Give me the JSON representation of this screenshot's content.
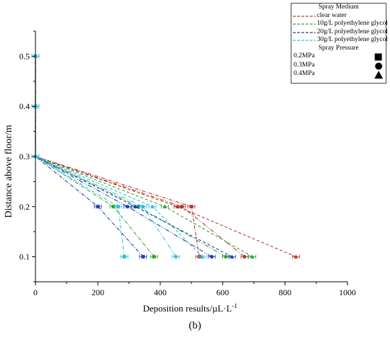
{
  "caption": "(b)",
  "chart_data": {
    "type": "line",
    "xlabel": "Deposition results/µL·L-1",
    "ylabel": "Distance above floor/m",
    "xlim": [
      0,
      1000
    ],
    "ylim": [
      0.05,
      0.55
    ],
    "xticks": [
      "0",
      "200",
      "400",
      "600",
      "800",
      "1000"
    ],
    "yticks": [
      "0.1",
      "0.2",
      "0.3",
      "0.4",
      "0.5"
    ],
    "y": [
      0.1,
      0.2,
      0.3,
      0.4,
      0.5
    ],
    "legend_placement": "top-right",
    "legend_title_medium": "Spray Medium",
    "legend_title_pressure": "Spray Pressure",
    "series": [
      {
        "name": "clear water",
        "color": "#b03a2e",
        "values": [
          [
            525,
            500,
            0,
            0,
            0
          ],
          [
            670,
            470,
            0,
            0,
            0
          ],
          [
            835,
            455,
            0,
            0,
            0
          ]
        ]
      },
      {
        "name": "10g/L polyethylene glycol",
        "color": "#2ea62e",
        "values": [
          [
            380,
            250,
            0,
            0,
            0
          ],
          [
            610,
            330,
            0,
            0,
            0
          ],
          [
            695,
            415,
            0,
            0,
            0
          ]
        ]
      },
      {
        "name": "20g/L polyethylene glycol",
        "color": "#1f3fb0",
        "values": [
          [
            345,
            200,
            0,
            0,
            0
          ],
          [
            565,
            295,
            0,
            0,
            0
          ],
          [
            630,
            320,
            0,
            0,
            0
          ]
        ]
      },
      {
        "name": "30g/L polyethylene glycol",
        "color": "#33c0d8",
        "values": [
          [
            285,
            265,
            0,
            0,
            0
          ],
          [
            450,
            345,
            0,
            0,
            0
          ],
          [
            535,
            375,
            0,
            0,
            0
          ]
        ]
      }
    ],
    "pressures": [
      {
        "label": "0.2MPa",
        "symbol": "square-icon"
      },
      {
        "label": "0.3MPa",
        "symbol": "circle-icon"
      },
      {
        "label": "0.4MPa",
        "symbol": "triangle-icon"
      }
    ]
  }
}
